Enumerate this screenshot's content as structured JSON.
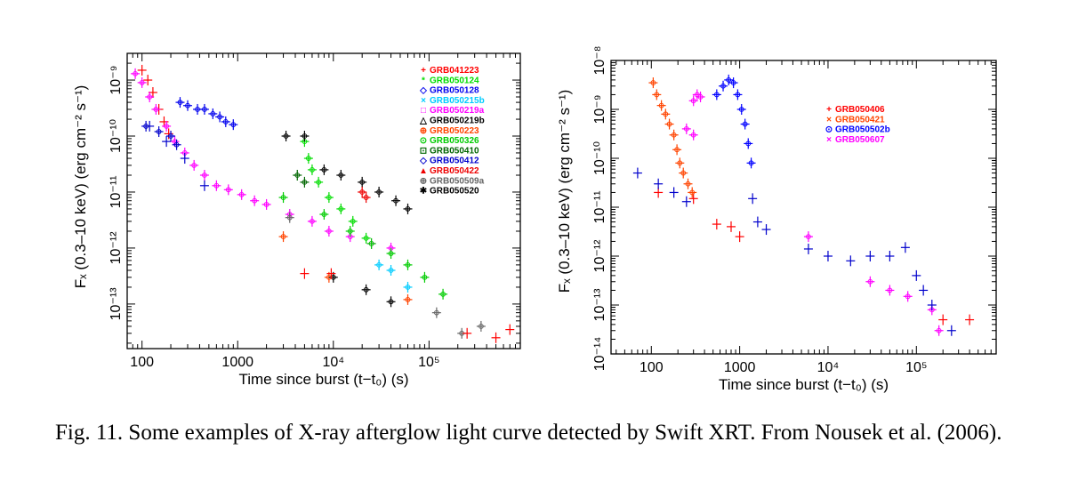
{
  "caption": "Fig. 11. Some examples of X-ray afterglow light curve detected by Swift XRT. From Nousek et al. (2006).",
  "chart_data": [
    {
      "type": "scatter",
      "xlabel": "Time since burst (t−t₀) (s)",
      "ylabel": "Fₓ (0.3–10 keV) (erg cm⁻² s⁻¹)",
      "xscale": "log",
      "yscale": "log",
      "xlim": [
        70,
        900000
      ],
      "ylim": [
        1.6e-14,
        3e-09
      ],
      "xticks": [
        {
          "value": 100,
          "label": "100"
        },
        {
          "value": 1000,
          "label": "1000"
        },
        {
          "value": 10000,
          "label": "10⁴"
        },
        {
          "value": 100000,
          "label": "10⁵"
        }
      ],
      "yticks": [
        {
          "value": 1e-13,
          "label": "10⁻¹³"
        },
        {
          "value": 1e-12,
          "label": "10⁻¹²"
        },
        {
          "value": 1e-11,
          "label": "10⁻¹¹"
        },
        {
          "value": 1e-10,
          "label": "10⁻¹⁰"
        },
        {
          "value": 1e-09,
          "label": "10⁻⁹"
        }
      ],
      "legend_position": "top-right",
      "grid": false,
      "series": [
        {
          "name": "GRB041223",
          "color": "#ff0000",
          "marker": "+",
          "points": [
            [
              100,
              1.5e-09
            ],
            [
              115,
              1e-09
            ],
            [
              130,
              6e-10
            ],
            [
              150,
              3e-10
            ],
            [
              170,
              1.8e-10
            ],
            [
              190,
              1.1e-10
            ]
          ]
        },
        {
          "name": "GRB050124",
          "color": "#00dd00",
          "marker": "*",
          "points": [
            [
              5000,
              8e-11
            ],
            [
              5500,
              4e-11
            ],
            [
              6000,
              2.5e-11
            ],
            [
              7000,
              1.5e-11
            ],
            [
              9000,
              8e-12
            ],
            [
              12000,
              5e-12
            ],
            [
              16000,
              3e-12
            ],
            [
              22000,
              1.5e-12
            ]
          ]
        },
        {
          "name": "GRB050128",
          "color": "#0000ee",
          "marker": "diamond",
          "points": [
            [
              250,
              4e-10
            ],
            [
              300,
              3.5e-10
            ],
            [
              380,
              3e-10
            ],
            [
              450,
              3e-10
            ],
            [
              550,
              2.5e-10
            ],
            [
              650,
              2.2e-10
            ],
            [
              750,
              1.8e-10
            ],
            [
              900,
              1.6e-10
            ]
          ]
        },
        {
          "name": "GRB050215b",
          "color": "#00ccff",
          "marker": "x",
          "points": [
            [
              30000,
              5e-13
            ],
            [
              40000,
              4e-13
            ],
            [
              60000,
              2e-13
            ]
          ]
        },
        {
          "name": "GRB050219a",
          "color": "#ff00ff",
          "marker": "square",
          "points": [
            [
              85,
              1.3e-09
            ],
            [
              100,
              9e-10
            ],
            [
              120,
              5e-10
            ],
            [
              140,
              3e-10
            ],
            [
              180,
              1.5e-10
            ],
            [
              220,
              8e-11
            ],
            [
              280,
              5e-11
            ],
            [
              350,
              3e-11
            ],
            [
              450,
              2e-11
            ],
            [
              600,
              1.3e-11
            ],
            [
              800,
              1.1e-11
            ],
            [
              1100,
              9e-12
            ],
            [
              1500,
              7e-12
            ],
            [
              2000,
              6e-12
            ],
            [
              3500,
              4e-12
            ],
            [
              6000,
              3e-12
            ],
            [
              9000,
              2e-12
            ],
            [
              15000,
              1.6e-12
            ],
            [
              25000,
              1.2e-12
            ],
            [
              40000,
              1e-12
            ]
          ]
        },
        {
          "name": "GRB050219b",
          "color": "#000000",
          "marker": "triangle",
          "points": [
            [
              3200,
              1e-10
            ],
            [
              8000,
              2.5e-11
            ],
            [
              12000,
              2e-11
            ],
            [
              20000,
              1.5e-11
            ],
            [
              30000,
              1e-11
            ],
            [
              45000,
              7e-12
            ],
            [
              60000,
              5e-12
            ]
          ]
        },
        {
          "name": "GRB050223",
          "color": "#ff4400",
          "marker": "circle-plus",
          "points": [
            [
              3000,
              1.6e-12
            ],
            [
              9000,
              3e-13
            ],
            [
              60000,
              1.2e-13
            ]
          ]
        },
        {
          "name": "GRB050326",
          "color": "#00cc00",
          "marker": "circle-dot",
          "points": [
            [
              3000,
              8e-12
            ],
            [
              8000,
              4e-12
            ],
            [
              15000,
              2e-12
            ],
            [
              25000,
              1.2e-12
            ],
            [
              40000,
              8e-13
            ],
            [
              60000,
              5e-13
            ],
            [
              90000,
              3e-13
            ],
            [
              140000,
              1.5e-13
            ]
          ]
        },
        {
          "name": "GRB050410",
          "color": "#006600",
          "marker": "square-dot",
          "points": [
            [
              4200,
              2e-11
            ],
            [
              5000,
              1.5e-11
            ]
          ]
        },
        {
          "name": "GRB050412",
          "color": "#0000cc",
          "marker": "diamond",
          "points": [
            [
              110,
              1.5e-10
            ],
            [
              150,
              1.2e-10
            ],
            [
              200,
              1e-10
            ],
            [
              230,
              7e-11
            ]
          ]
        },
        {
          "name": "GRB050422",
          "color": "#ee0000",
          "marker": "filled-triangle",
          "points": [
            [
              20000,
              1e-11
            ],
            [
              22000,
              8e-12
            ]
          ]
        },
        {
          "name": "GRB050509a",
          "color": "#666666",
          "marker": "circle-plus",
          "points": [
            [
              3500,
              3.5e-12
            ],
            [
              120000,
              7e-14
            ],
            [
              220000,
              3e-14
            ],
            [
              350000,
              4e-14
            ]
          ]
        },
        {
          "name": "GRB050520",
          "color": "#000000",
          "marker": "star",
          "points": [
            [
              5000,
              1e-10
            ],
            [
              10000,
              3e-13
            ],
            [
              22000,
              1.8e-13
            ],
            [
              40000,
              1.1e-13
            ]
          ]
        },
        {
          "name": "GRB041223",
          "color": "#ff0000",
          "marker": "+",
          "points": [
            [
              5000,
              3.5e-13
            ],
            [
              9500,
              3.5e-13
            ],
            [
              250000,
              3e-14
            ],
            [
              500000,
              2.5e-14
            ],
            [
              700000,
              3.5e-14
            ]
          ]
        },
        {
          "name": "GRB050412",
          "color": "#0000cc",
          "marker": "+",
          "points": [
            [
              120,
              1.5e-10
            ],
            [
              180,
              8e-11
            ],
            [
              280,
              4e-11
            ],
            [
              450,
              1.3e-11
            ]
          ]
        }
      ]
    },
    {
      "type": "scatter",
      "xlabel": "Time since burst (t−t₀) (s)",
      "ylabel": "Fₓ (0.3–10 keV) (erg cm⁻² s⁻¹)",
      "xscale": "log",
      "yscale": "log",
      "xlim": [
        35,
        800000
      ],
      "ylim": [
        1e-14,
        1e-08
      ],
      "xticks": [
        {
          "value": 100,
          "label": "100"
        },
        {
          "value": 1000,
          "label": "1000"
        },
        {
          "value": 10000,
          "label": "10⁴"
        },
        {
          "value": 100000,
          "label": "10⁵"
        }
      ],
      "yticks": [
        {
          "value": 1e-14,
          "label": "10⁻¹⁴"
        },
        {
          "value": 1e-13,
          "label": "10⁻¹³"
        },
        {
          "value": 1e-12,
          "label": "10⁻¹²"
        },
        {
          "value": 1e-11,
          "label": "10⁻¹¹"
        },
        {
          "value": 1e-10,
          "label": "10⁻¹⁰"
        },
        {
          "value": 1e-09,
          "label": "10⁻⁹"
        },
        {
          "value": 1e-08,
          "label": "10⁻⁸"
        }
      ],
      "legend_position": "top-center",
      "grid": false,
      "series": [
        {
          "name": "GRB050406",
          "color": "#ff0000",
          "marker": "+",
          "points": [
            [
              120,
              2e-11
            ],
            [
              300,
              1.5e-11
            ],
            [
              550,
              4.5e-12
            ],
            [
              800,
              4e-12
            ],
            [
              1000,
              2.5e-12
            ],
            [
              200000,
              5e-14
            ],
            [
              400000,
              5e-14
            ]
          ]
        },
        {
          "name": "GRB050421",
          "color": "#ff4400",
          "marker": "x",
          "points": [
            [
              105,
              3.5e-09
            ],
            [
              115,
              2e-09
            ],
            [
              130,
              1.2e-09
            ],
            [
              145,
              8e-10
            ],
            [
              160,
              5e-10
            ],
            [
              180,
              3e-10
            ],
            [
              195,
              1.5e-10
            ],
            [
              210,
              8e-11
            ],
            [
              230,
              5e-11
            ],
            [
              260,
              3e-11
            ],
            [
              290,
              2e-11
            ]
          ]
        },
        {
          "name": "GRB050502b",
          "color": "#0000ff",
          "marker": "circle-dot",
          "points": [
            [
              550,
              2e-09
            ],
            [
              650,
              3e-09
            ],
            [
              750,
              4e-09
            ],
            [
              850,
              3.5e-09
            ],
            [
              950,
              2e-09
            ],
            [
              1050,
              1e-09
            ],
            [
              1150,
              5e-10
            ],
            [
              1250,
              2e-10
            ],
            [
              1350,
              8e-11
            ]
          ]
        },
        {
          "name": "GRB050607",
          "color": "#ff00ff",
          "marker": "x",
          "points": [
            [
              300,
              1.5e-09
            ],
            [
              330,
              2e-09
            ],
            [
              360,
              1.8e-09
            ],
            [
              300,
              3e-10
            ],
            [
              250,
              4e-10
            ],
            [
              30000,
              3e-13
            ],
            [
              50000,
              2e-13
            ],
            [
              80000,
              1.5e-13
            ],
            [
              150000,
              8e-14
            ],
            [
              180000,
              3e-14
            ],
            [
              6000,
              2.5e-12
            ]
          ]
        },
        {
          "name": "GRB050502b",
          "color": "#0000cc",
          "marker": "+",
          "points": [
            [
              70,
              5e-11
            ],
            [
              120,
              3e-11
            ],
            [
              180,
              2e-11
            ],
            [
              250,
              1.3e-11
            ],
            [
              1400,
              1.5e-11
            ],
            [
              1600,
              5e-12
            ],
            [
              2000,
              3.5e-12
            ],
            [
              6000,
              1.4e-12
            ],
            [
              10000,
              1e-12
            ],
            [
              18000,
              8e-13
            ],
            [
              30000,
              1e-12
            ],
            [
              50000,
              1e-12
            ],
            [
              75000,
              1.5e-12
            ],
            [
              100000,
              4e-13
            ],
            [
              120000,
              2e-13
            ],
            [
              150000,
              1e-13
            ],
            [
              250000,
              3e-14
            ]
          ]
        }
      ],
      "legend": [
        {
          "name": "GRB050406",
          "color": "#ff0000",
          "marker": "+"
        },
        {
          "name": "GRB050421",
          "color": "#ff4400",
          "marker": "x"
        },
        {
          "name": "GRB050502b",
          "color": "#0000ff",
          "marker": "circle-dot"
        },
        {
          "name": "GRB050607",
          "color": "#ff00ff",
          "marker": "x"
        }
      ]
    }
  ],
  "legend_left": [
    {
      "name": "GRB041223",
      "color": "#ff0000",
      "marker": "+"
    },
    {
      "name": "GRB050124",
      "color": "#00dd00",
      "marker": "*"
    },
    {
      "name": "GRB050128",
      "color": "#0000ee",
      "marker": "◇"
    },
    {
      "name": "GRB050215b",
      "color": "#00ccff",
      "marker": "×"
    },
    {
      "name": "GRB050219a",
      "color": "#ff00ff",
      "marker": "□"
    },
    {
      "name": "GRB050219b",
      "color": "#000000",
      "marker": "△"
    },
    {
      "name": "GRB050223",
      "color": "#ff4400",
      "marker": "⊕"
    },
    {
      "name": "GRB050326",
      "color": "#00cc00",
      "marker": "⊙"
    },
    {
      "name": "GRB050410",
      "color": "#006600",
      "marker": "⊡"
    },
    {
      "name": "GRB050412",
      "color": "#0000cc",
      "marker": "◇"
    },
    {
      "name": "GRB050422",
      "color": "#ee0000",
      "marker": "▲"
    },
    {
      "name": "GRB050509a",
      "color": "#666666",
      "marker": "⊕"
    },
    {
      "name": "GRB050520",
      "color": "#000000",
      "marker": "✱"
    }
  ],
  "legend_right": [
    {
      "name": "GRB050406",
      "color": "#ff0000",
      "marker": "+"
    },
    {
      "name": "GRB050421",
      "color": "#ff4400",
      "marker": "×"
    },
    {
      "name": "GRB050502b",
      "color": "#0000ff",
      "marker": "⊙"
    },
    {
      "name": "GRB050607",
      "color": "#ff00ff",
      "marker": "×"
    }
  ]
}
